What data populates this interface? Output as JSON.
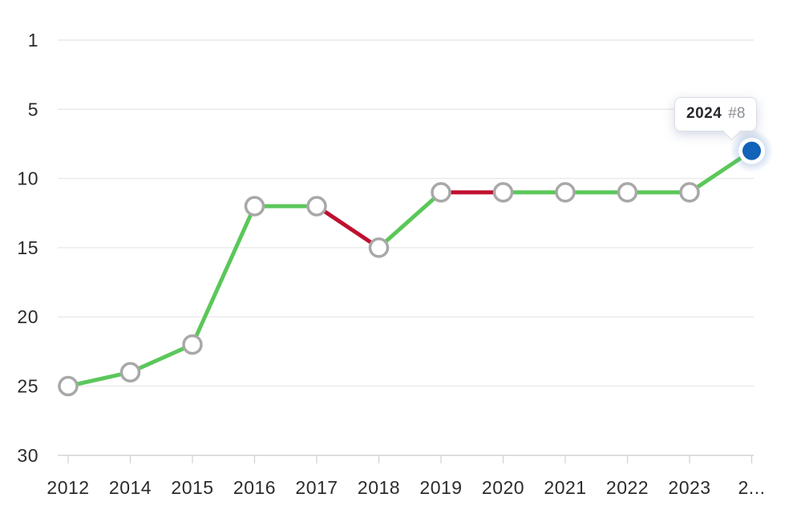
{
  "chart_data": {
    "type": "line",
    "title": "",
    "xlabel": "",
    "ylabel": "",
    "x": [
      2012,
      2014,
      2015,
      2016,
      2017,
      2018,
      2019,
      2020,
      2021,
      2022,
      2023,
      2024
    ],
    "x_tick_labels": [
      "2012",
      "2014",
      "2015",
      "2016",
      "2017",
      "2018",
      "2019",
      "2020",
      "2021",
      "2022",
      "2023",
      "2..."
    ],
    "values": [
      25,
      24,
      22,
      12,
      12,
      15,
      11,
      11,
      11,
      11,
      11,
      8
    ],
    "y_ticks": [
      1,
      5,
      10,
      15,
      20,
      25,
      30
    ],
    "y_axis_inverted": true,
    "ylim": [
      1,
      30
    ],
    "grid": true,
    "legend": false,
    "segment_colors": [
      "green",
      "green",
      "green",
      "green",
      "red",
      "green",
      "red",
      "green",
      "green",
      "green",
      "green"
    ],
    "highlighted_point": {
      "year": 2024,
      "rank": 8
    }
  },
  "tooltip": {
    "year": "2024",
    "rank_label": "#8"
  },
  "colors": {
    "line_green": "#5bc75a",
    "line_red": "#bf102f",
    "marker_fill": "#ffffff",
    "marker_stroke": "#a8a8a8",
    "active_dot": "#1162b8",
    "active_halo": "#5a8cc8",
    "grid": "#e9e9e9",
    "axis": "#d0d0d0",
    "label": "#2b2b2b",
    "tooltip_border": "#d9dde3",
    "tooltip_year_text": "#26282c",
    "tooltip_rank_text": "#8b9096",
    "background": "#ffffff"
  }
}
